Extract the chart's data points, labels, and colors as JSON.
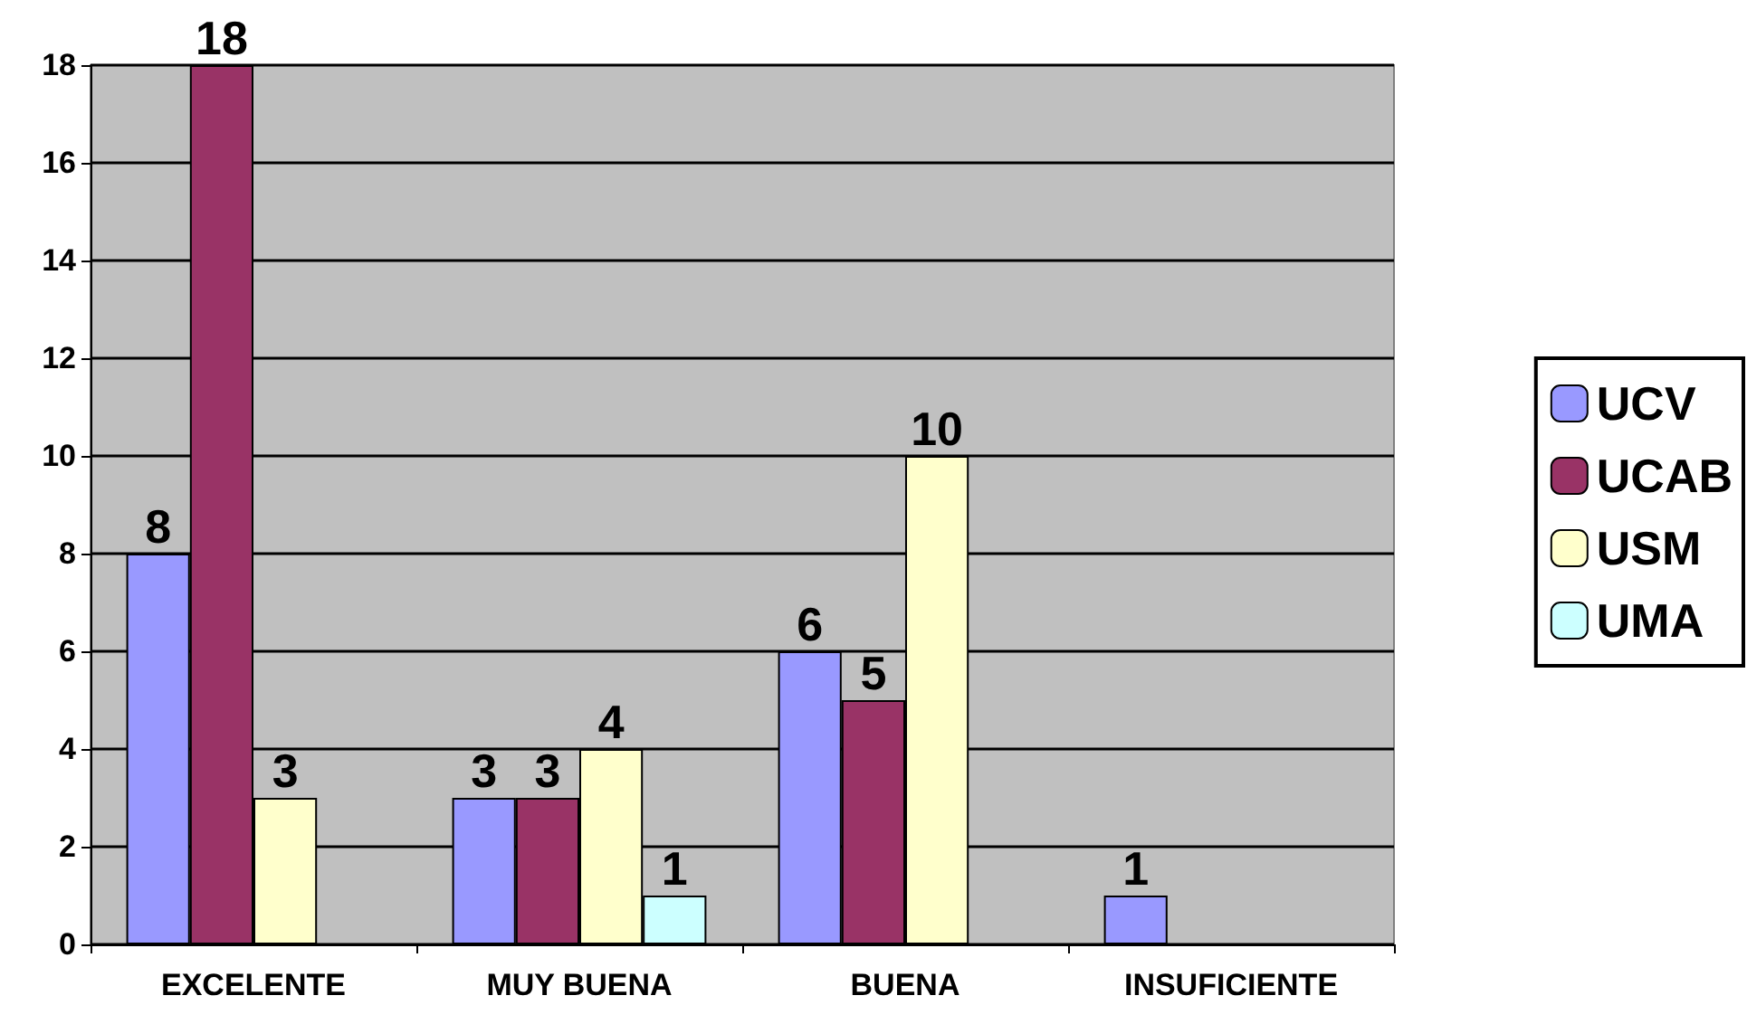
{
  "chart_data": {
    "type": "bar",
    "categories": [
      "EXCELENTE",
      "MUY BUENA",
      "BUENA",
      "INSUFICIENTE"
    ],
    "series": [
      {
        "name": "UCV",
        "color": "#9999ff",
        "values": [
          8,
          3,
          6,
          1
        ]
      },
      {
        "name": "UCAB",
        "color": "#993366",
        "values": [
          18,
          3,
          5,
          null
        ]
      },
      {
        "name": "USM",
        "color": "#ffffcc",
        "values": [
          3,
          4,
          10,
          null
        ]
      },
      {
        "name": "UMA",
        "color": "#ccffff",
        "values": [
          null,
          1,
          null,
          null
        ]
      }
    ],
    "ylim": [
      0,
      18
    ],
    "yticks": [
      0,
      2,
      4,
      6,
      8,
      10,
      12,
      14,
      16,
      18
    ],
    "grid": "y",
    "legend": "right",
    "data_labels": true
  }
}
